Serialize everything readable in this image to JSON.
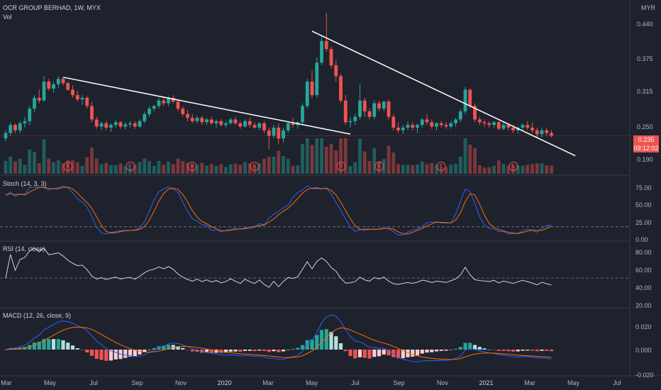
{
  "header": {
    "symbol_line": "OCR GROUP BERHAD, 1W, MYX",
    "vol_label": "Vol"
  },
  "currency": "MYR",
  "price_badge": {
    "price": "0.235",
    "countdown": "09:12:02",
    "color": "#ef5350"
  },
  "panes": {
    "stoch": {
      "label": "Stoch (14, 3, 3)",
      "ticks": [
        "75.00",
        "50.00",
        "25.00",
        "0.00"
      ]
    },
    "rsi": {
      "label": "RSI (14, close)",
      "ticks": [
        "80.00",
        "60.00",
        "40.00",
        "20.00"
      ]
    },
    "macd": {
      "label": "MACD (12, 26, close, 9)",
      "ticks": [
        "0.020",
        "0.000",
        "-0.020"
      ]
    }
  },
  "earnings_marker": "E",
  "colors": {
    "up": "#26a69a",
    "down": "#ef5350",
    "trendline": "#ffffff",
    "rsi": "#d1d4dc",
    "macd": "#2962ff",
    "signal": "#ff6d00"
  },
  "chart_data": {
    "type": "candlestick",
    "price_axis": {
      "ticks": [
        0.44,
        0.375,
        0.315,
        0.25,
        0.19
      ],
      "tick_labels": [
        "0.440",
        "0.375",
        "0.315",
        "0.250",
        "0.190"
      ],
      "range": [
        0.178,
        0.462
      ]
    },
    "x_axis": {
      "labels": [
        "Mar",
        "May",
        "Jul",
        "Sep",
        "Nov",
        "2020",
        "Mar",
        "May",
        "Jul",
        "Sep",
        "Nov",
        "2021",
        "Mar",
        "May",
        "Jul"
      ]
    },
    "last_close": 0.235,
    "trendlines": [
      {
        "from": {
          "week": 12,
          "price": 0.343
        },
        "to": {
          "week": 72,
          "price": 0.238
        }
      },
      {
        "from": {
          "week": 64,
          "price": 0.428
        },
        "to": {
          "week": 119,
          "price": 0.198
        }
      }
    ],
    "candles": [
      [
        0.23,
        0.245,
        0.225,
        0.24
      ],
      [
        0.24,
        0.26,
        0.235,
        0.255
      ],
      [
        0.255,
        0.258,
        0.24,
        0.245
      ],
      [
        0.245,
        0.262,
        0.24,
        0.258
      ],
      [
        0.258,
        0.27,
        0.25,
        0.262
      ],
      [
        0.262,
        0.29,
        0.255,
        0.285
      ],
      [
        0.285,
        0.31,
        0.278,
        0.305
      ],
      [
        0.305,
        0.32,
        0.295,
        0.3
      ],
      [
        0.3,
        0.345,
        0.298,
        0.335
      ],
      [
        0.335,
        0.34,
        0.318,
        0.322
      ],
      [
        0.322,
        0.335,
        0.315,
        0.33
      ],
      [
        0.33,
        0.345,
        0.322,
        0.34
      ],
      [
        0.34,
        0.343,
        0.328,
        0.332
      ],
      [
        0.332,
        0.335,
        0.318,
        0.32
      ],
      [
        0.32,
        0.328,
        0.305,
        0.31
      ],
      [
        0.31,
        0.318,
        0.298,
        0.302
      ],
      [
        0.302,
        0.31,
        0.292,
        0.305
      ],
      [
        0.305,
        0.308,
        0.285,
        0.29
      ],
      [
        0.29,
        0.298,
        0.26,
        0.265
      ],
      [
        0.265,
        0.27,
        0.248,
        0.252
      ],
      [
        0.252,
        0.262,
        0.245,
        0.258
      ],
      [
        0.258,
        0.262,
        0.245,
        0.25
      ],
      [
        0.25,
        0.258,
        0.242,
        0.255
      ],
      [
        0.255,
        0.265,
        0.25,
        0.26
      ],
      [
        0.26,
        0.262,
        0.248,
        0.252
      ],
      [
        0.252,
        0.26,
        0.246,
        0.256
      ],
      [
        0.256,
        0.262,
        0.25,
        0.258
      ],
      [
        0.258,
        0.262,
        0.248,
        0.252
      ],
      [
        0.252,
        0.265,
        0.25,
        0.262
      ],
      [
        0.262,
        0.28,
        0.258,
        0.275
      ],
      [
        0.275,
        0.29,
        0.27,
        0.285
      ],
      [
        0.285,
        0.292,
        0.28,
        0.29
      ],
      [
        0.29,
        0.305,
        0.285,
        0.3
      ],
      [
        0.3,
        0.308,
        0.29,
        0.295
      ],
      [
        0.295,
        0.308,
        0.29,
        0.305
      ],
      [
        0.305,
        0.31,
        0.295,
        0.298
      ],
      [
        0.298,
        0.302,
        0.28,
        0.285
      ],
      [
        0.285,
        0.29,
        0.27,
        0.275
      ],
      [
        0.275,
        0.282,
        0.262,
        0.268
      ],
      [
        0.268,
        0.275,
        0.258,
        0.262
      ],
      [
        0.262,
        0.272,
        0.258,
        0.268
      ],
      [
        0.268,
        0.272,
        0.255,
        0.26
      ],
      [
        0.26,
        0.268,
        0.255,
        0.265
      ],
      [
        0.265,
        0.27,
        0.255,
        0.258
      ],
      [
        0.258,
        0.265,
        0.25,
        0.262
      ],
      [
        0.262,
        0.266,
        0.252,
        0.255
      ],
      [
        0.255,
        0.262,
        0.25,
        0.258
      ],
      [
        0.258,
        0.268,
        0.255,
        0.265
      ],
      [
        0.265,
        0.27,
        0.255,
        0.258
      ],
      [
        0.258,
        0.262,
        0.248,
        0.252
      ],
      [
        0.252,
        0.265,
        0.25,
        0.262
      ],
      [
        0.262,
        0.268,
        0.25,
        0.255
      ],
      [
        0.255,
        0.26,
        0.248,
        0.25
      ],
      [
        0.25,
        0.26,
        0.245,
        0.258
      ],
      [
        0.258,
        0.262,
        0.24,
        0.245
      ],
      [
        0.245,
        0.25,
        0.21,
        0.235
      ],
      [
        0.235,
        0.255,
        0.23,
        0.25
      ],
      [
        0.25,
        0.258,
        0.22,
        0.23
      ],
      [
        0.23,
        0.25,
        0.222,
        0.245
      ],
      [
        0.245,
        0.262,
        0.24,
        0.258
      ],
      [
        0.258,
        0.268,
        0.25,
        0.255
      ],
      [
        0.255,
        0.262,
        0.248,
        0.26
      ],
      [
        0.26,
        0.295,
        0.255,
        0.29
      ],
      [
        0.29,
        0.34,
        0.285,
        0.335
      ],
      [
        0.335,
        0.355,
        0.305,
        0.31
      ],
      [
        0.31,
        0.38,
        0.305,
        0.37
      ],
      [
        0.37,
        0.42,
        0.365,
        0.41
      ],
      [
        0.41,
        0.462,
        0.39,
        0.395
      ],
      [
        0.395,
        0.4,
        0.36,
        0.365
      ],
      [
        0.365,
        0.375,
        0.335,
        0.345
      ],
      [
        0.345,
        0.35,
        0.295,
        0.3
      ],
      [
        0.3,
        0.31,
        0.255,
        0.26
      ],
      [
        0.26,
        0.27,
        0.25,
        0.262
      ],
      [
        0.262,
        0.275,
        0.255,
        0.27
      ],
      [
        0.27,
        0.33,
        0.265,
        0.3
      ],
      [
        0.3,
        0.305,
        0.27,
        0.28
      ],
      [
        0.28,
        0.285,
        0.265,
        0.27
      ],
      [
        0.27,
        0.3,
        0.265,
        0.295
      ],
      [
        0.295,
        0.3,
        0.28,
        0.285
      ],
      [
        0.285,
        0.3,
        0.28,
        0.298
      ],
      [
        0.298,
        0.302,
        0.265,
        0.27
      ],
      [
        0.27,
        0.275,
        0.245,
        0.25
      ],
      [
        0.25,
        0.26,
        0.24,
        0.245
      ],
      [
        0.245,
        0.255,
        0.238,
        0.25
      ],
      [
        0.25,
        0.262,
        0.245,
        0.255
      ],
      [
        0.255,
        0.26,
        0.245,
        0.25
      ],
      [
        0.25,
        0.258,
        0.24,
        0.255
      ],
      [
        0.255,
        0.268,
        0.25,
        0.265
      ],
      [
        0.265,
        0.275,
        0.255,
        0.26
      ],
      [
        0.26,
        0.265,
        0.248,
        0.252
      ],
      [
        0.252,
        0.26,
        0.245,
        0.258
      ],
      [
        0.258,
        0.262,
        0.25,
        0.255
      ],
      [
        0.255,
        0.26,
        0.248,
        0.252
      ],
      [
        0.252,
        0.262,
        0.248,
        0.258
      ],
      [
        0.258,
        0.268,
        0.252,
        0.265
      ],
      [
        0.265,
        0.285,
        0.26,
        0.28
      ],
      [
        0.28,
        0.325,
        0.275,
        0.32
      ],
      [
        0.32,
        0.322,
        0.285,
        0.29
      ],
      [
        0.29,
        0.295,
        0.26,
        0.265
      ],
      [
        0.265,
        0.27,
        0.255,
        0.26
      ],
      [
        0.26,
        0.265,
        0.252,
        0.258
      ],
      [
        0.258,
        0.262,
        0.25,
        0.255
      ],
      [
        0.255,
        0.262,
        0.25,
        0.26
      ],
      [
        0.26,
        0.262,
        0.245,
        0.248
      ],
      [
        0.248,
        0.26,
        0.245,
        0.255
      ],
      [
        0.255,
        0.258,
        0.245,
        0.25
      ],
      [
        0.25,
        0.255,
        0.24,
        0.245
      ],
      [
        0.245,
        0.252,
        0.238,
        0.25
      ],
      [
        0.25,
        0.258,
        0.245,
        0.255
      ],
      [
        0.255,
        0.262,
        0.245,
        0.25
      ],
      [
        0.25,
        0.26,
        0.24,
        0.245
      ],
      [
        0.245,
        0.25,
        0.232,
        0.238
      ],
      [
        0.238,
        0.25,
        0.232,
        0.245
      ],
      [
        0.245,
        0.25,
        0.235,
        0.24
      ],
      [
        0.24,
        0.245,
        0.232,
        0.235
      ]
    ],
    "earnings_weeks": [
      13,
      26,
      39,
      52,
      70,
      78,
      91,
      106
    ]
  }
}
